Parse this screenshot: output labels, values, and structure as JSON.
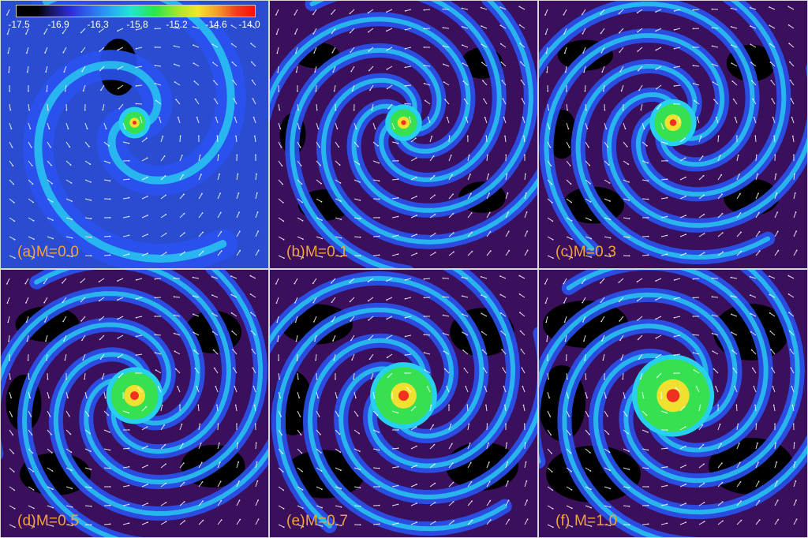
{
  "colorbar": {
    "ticks": [
      "-17.5",
      "-16.9",
      "-16.3",
      "-15.8",
      "-15.2",
      "-14.6",
      "-14.0"
    ]
  },
  "panels": [
    {
      "label": "(a)M=0.0",
      "mass_ratio": 0.0
    },
    {
      "label": "(b)M=0.1",
      "mass_ratio": 0.1
    },
    {
      "label": "(c)M=0.3",
      "mass_ratio": 0.3
    },
    {
      "label": "(d)M=0.5",
      "mass_ratio": 0.5
    },
    {
      "label": "(e)M=0.7",
      "mass_ratio": 0.7
    },
    {
      "label": "(f) M=1.0",
      "mass_ratio": 1.0
    }
  ],
  "colors": {
    "background_low": "#3a0f5c",
    "void": "#000000",
    "arm_blue": "#2a52f0",
    "arm_cyan": "#28d0f0",
    "core_green": "#36e050",
    "core_yellow": "#f0e030",
    "core_red": "#f03020",
    "label": "#f2a33a",
    "vector": "#ffffff"
  }
}
